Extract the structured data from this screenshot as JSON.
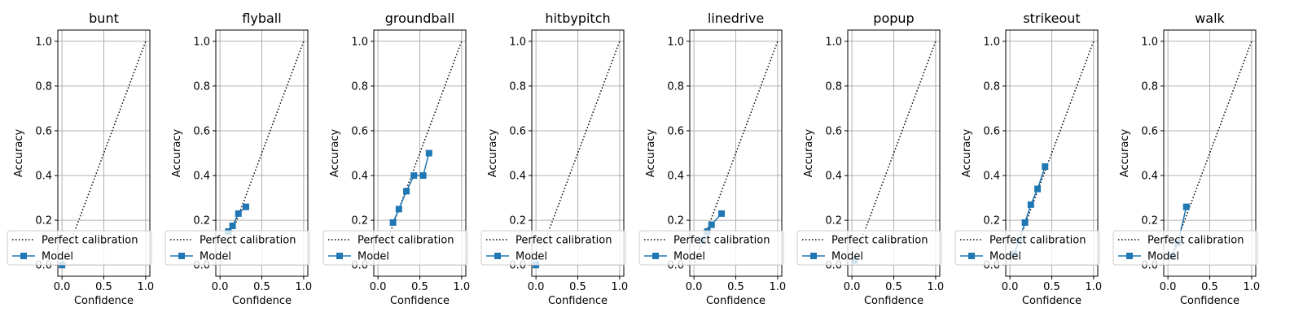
{
  "colors": {
    "model": "#1f77b4",
    "perfect": "#000000",
    "grid": "#b0b0b0"
  },
  "chart_data": [
    {
      "type": "line",
      "title": "bunt",
      "xlabel": "Confidence",
      "ylabel": "Accuracy",
      "xlim": [
        -0.05,
        1.05
      ],
      "ylim": [
        -0.05,
        1.05
      ],
      "grid": true,
      "legend_loc": "lower left",
      "xticks": [
        0.0,
        0.5,
        1.0
      ],
      "yticks": [
        0.0,
        0.2,
        0.4,
        0.6,
        0.8,
        1.0
      ],
      "tick_labels_x": [
        "0.0",
        "0.5",
        "1.0"
      ],
      "tick_labels_y": [
        "0.0",
        "0.2",
        "0.4",
        "0.6",
        "0.8",
        "1.0"
      ],
      "series": [
        {
          "name": "Perfect calibration",
          "x": [
            0,
            1
          ],
          "y": [
            0,
            1
          ]
        },
        {
          "name": "Model",
          "x": [
            0.0
          ],
          "y": [
            0.0
          ]
        }
      ]
    },
    {
      "type": "line",
      "title": "flyball",
      "xlabel": "Confidence",
      "ylabel": "Accuracy",
      "xlim": [
        -0.05,
        1.05
      ],
      "ylim": [
        -0.05,
        1.05
      ],
      "grid": true,
      "legend_loc": "lower left",
      "xticks": [
        0.0,
        0.5,
        1.0
      ],
      "yticks": [
        0.0,
        0.2,
        0.4,
        0.6,
        0.8,
        1.0
      ],
      "tick_labels_x": [
        "0.0",
        "0.5",
        "1.0"
      ],
      "tick_labels_y": [
        "0.0",
        "0.2",
        "0.4",
        "0.6",
        "0.8",
        "1.0"
      ],
      "series": [
        {
          "name": "Perfect calibration",
          "x": [
            0,
            1
          ],
          "y": [
            0,
            1
          ]
        },
        {
          "name": "Model",
          "x": [
            0.1,
            0.15,
            0.22,
            0.31
          ],
          "y": [
            0.15,
            0.175,
            0.23,
            0.26
          ]
        }
      ]
    },
    {
      "type": "line",
      "title": "groundball",
      "xlabel": "Confidence",
      "ylabel": "Accuracy",
      "xlim": [
        -0.05,
        1.05
      ],
      "ylim": [
        -0.05,
        1.05
      ],
      "grid": true,
      "legend_loc": "lower left",
      "xticks": [
        0.0,
        0.5,
        1.0
      ],
      "yticks": [
        0.0,
        0.2,
        0.4,
        0.6,
        0.8,
        1.0
      ],
      "tick_labels_x": [
        "0.0",
        "0.5",
        "1.0"
      ],
      "tick_labels_y": [
        "0.0",
        "0.2",
        "0.4",
        "0.6",
        "0.8",
        "1.0"
      ],
      "series": [
        {
          "name": "Perfect calibration",
          "x": [
            0,
            1
          ],
          "y": [
            0,
            1
          ]
        },
        {
          "name": "Model",
          "x": [
            0.18,
            0.25,
            0.34,
            0.43,
            0.54,
            0.61
          ],
          "y": [
            0.19,
            0.25,
            0.33,
            0.4,
            0.4,
            0.5
          ]
        }
      ]
    },
    {
      "type": "line",
      "title": "hitbypitch",
      "xlabel": "Confidence",
      "ylabel": "Accuracy",
      "xlim": [
        -0.05,
        1.05
      ],
      "ylim": [
        -0.05,
        1.05
      ],
      "grid": true,
      "legend_loc": "lower left",
      "xticks": [
        0.0,
        0.5,
        1.0
      ],
      "yticks": [
        0.0,
        0.2,
        0.4,
        0.6,
        0.8,
        1.0
      ],
      "tick_labels_x": [
        "0.0",
        "0.5",
        "1.0"
      ],
      "tick_labels_y": [
        "0.0",
        "0.2",
        "0.4",
        "0.6",
        "0.8",
        "1.0"
      ],
      "series": [
        {
          "name": "Perfect calibration",
          "x": [
            0,
            1
          ],
          "y": [
            0,
            1
          ]
        },
        {
          "name": "Model",
          "x": [
            0.0
          ],
          "y": [
            0.0
          ]
        }
      ]
    },
    {
      "type": "line",
      "title": "linedrive",
      "xlabel": "Confidence",
      "ylabel": "Accuracy",
      "xlim": [
        -0.05,
        1.05
      ],
      "ylim": [
        -0.05,
        1.05
      ],
      "grid": true,
      "legend_loc": "lower left",
      "xticks": [
        0.0,
        0.5,
        1.0
      ],
      "yticks": [
        0.0,
        0.2,
        0.4,
        0.6,
        0.8,
        1.0
      ],
      "tick_labels_x": [
        "0.0",
        "0.5",
        "1.0"
      ],
      "tick_labels_y": [
        "0.0",
        "0.2",
        "0.4",
        "0.6",
        "0.8",
        "1.0"
      ],
      "series": [
        {
          "name": "Perfect calibration",
          "x": [
            0,
            1
          ],
          "y": [
            0,
            1
          ]
        },
        {
          "name": "Model",
          "x": [
            0.1,
            0.16,
            0.21,
            0.33
          ],
          "y": [
            0.11,
            0.15,
            0.18,
            0.23
          ]
        }
      ]
    },
    {
      "type": "line",
      "title": "popup",
      "xlabel": "Confidence",
      "ylabel": "Accuracy",
      "xlim": [
        -0.05,
        1.05
      ],
      "ylim": [
        -0.05,
        1.05
      ],
      "grid": true,
      "legend_loc": "lower left",
      "xticks": [
        0.0,
        0.5,
        1.0
      ],
      "yticks": [
        0.0,
        0.2,
        0.4,
        0.6,
        0.8,
        1.0
      ],
      "tick_labels_x": [
        "0.0",
        "0.5",
        "1.0"
      ],
      "tick_labels_y": [
        "0.0",
        "0.2",
        "0.4",
        "0.6",
        "0.8",
        "1.0"
      ],
      "series": [
        {
          "name": "Perfect calibration",
          "x": [
            0,
            1
          ],
          "y": [
            0,
            1
          ]
        },
        {
          "name": "Model",
          "x": [
            0.03
          ],
          "y": [
            0.02
          ]
        }
      ]
    },
    {
      "type": "line",
      "title": "strikeout",
      "xlabel": "Confidence",
      "ylabel": "Accuracy",
      "xlim": [
        -0.05,
        1.05
      ],
      "ylim": [
        -0.05,
        1.05
      ],
      "grid": true,
      "legend_loc": "lower left",
      "xticks": [
        0.0,
        0.5,
        1.0
      ],
      "yticks": [
        0.0,
        0.2,
        0.4,
        0.6,
        0.8,
        1.0
      ],
      "tick_labels_x": [
        "0.0",
        "0.5",
        "1.0"
      ],
      "tick_labels_y": [
        "0.0",
        "0.2",
        "0.4",
        "0.6",
        "0.8",
        "1.0"
      ],
      "series": [
        {
          "name": "Perfect calibration",
          "x": [
            0,
            1
          ],
          "y": [
            0,
            1
          ]
        },
        {
          "name": "Model",
          "x": [
            0.05,
            0.11,
            0.18,
            0.25,
            0.33,
            0.42
          ],
          "y": [
            0.05,
            0.11,
            0.19,
            0.27,
            0.34,
            0.44
          ]
        }
      ]
    },
    {
      "type": "line",
      "title": "walk",
      "xlabel": "Confidence",
      "ylabel": "Accuracy",
      "xlim": [
        -0.05,
        1.05
      ],
      "ylim": [
        -0.05,
        1.05
      ],
      "grid": true,
      "legend_loc": "lower left",
      "xticks": [
        0.0,
        0.5,
        1.0
      ],
      "yticks": [
        0.0,
        0.2,
        0.4,
        0.6,
        0.8,
        1.0
      ],
      "tick_labels_x": [
        "0.0",
        "0.5",
        "1.0"
      ],
      "tick_labels_y": [
        "0.0",
        "0.2",
        "0.4",
        "0.6",
        "0.8",
        "1.0"
      ],
      "series": [
        {
          "name": "Perfect calibration",
          "x": [
            0,
            1
          ],
          "y": [
            0,
            1
          ]
        },
        {
          "name": "Model",
          "x": [
            0.05,
            0.12,
            0.22
          ],
          "y": [
            0.04,
            0.1,
            0.26
          ]
        }
      ]
    }
  ]
}
